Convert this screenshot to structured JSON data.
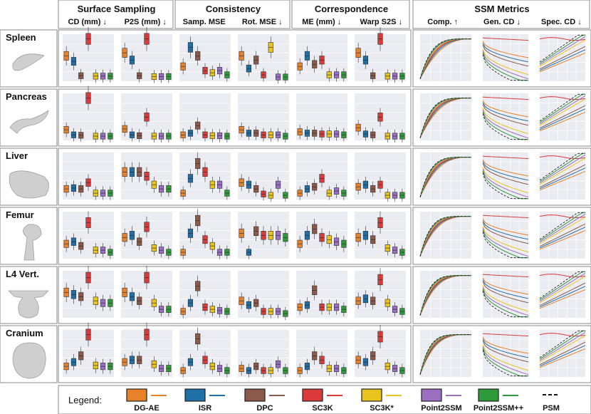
{
  "groups": [
    {
      "title": "Surface Sampling",
      "subs": [
        "CD (mm) ↓",
        "P2S (mm) ↓"
      ]
    },
    {
      "title": "Consistency",
      "subs": [
        "Samp. MSE",
        "Rot. MSE ↓"
      ]
    },
    {
      "title": "Correspondence",
      "subs": [
        "ME (mm) ↓",
        "Warp S2S ↓"
      ]
    },
    {
      "title": "SSM Metrics",
      "subs": [
        "Comp. ↑",
        "Gen. CD ↓",
        "Spec. CD ↓"
      ]
    }
  ],
  "organs": [
    "Spleen",
    "Pancreas",
    "Liver",
    "Femur",
    "L4 Vert.",
    "Cranium"
  ],
  "legend": {
    "title": "Legend:",
    "methods": [
      {
        "name": "DG-AE",
        "color": "#e8822a"
      },
      {
        "name": "ISR",
        "color": "#1f6fa8"
      },
      {
        "name": "DPC",
        "color": "#8b5a4a"
      },
      {
        "name": "SC3K",
        "color": "#d93a3a"
      },
      {
        "name": "SC3K*",
        "color": "#e8c41c"
      },
      {
        "name": "Point2SSM",
        "color": "#9b6fc2"
      },
      {
        "name": "Point2SSM++",
        "color": "#2e9a3a"
      },
      {
        "name": "PSM",
        "color": "#111111"
      }
    ]
  },
  "box_levels": [
    [
      [
        0.55,
        0.42,
        0.08,
        0.95,
        0.07,
        0.07,
        0.07
      ],
      [
        0.62,
        0.45,
        0.08,
        0.95,
        0.06,
        0.06,
        0.06
      ],
      [
        0.3,
        0.75,
        0.55,
        0.2,
        0.15,
        0.2,
        0.1
      ],
      [
        0.55,
        0.25,
        0.45,
        0.1,
        0.75,
        0.05,
        0.05
      ],
      [
        0.3,
        0.55,
        0.35,
        0.45,
        0.1,
        0.1,
        0.1
      ],
      [
        0.62,
        0.45,
        0.08,
        0.95,
        0.07,
        0.07,
        0.07
      ]
    ],
    [
      [
        0.2,
        0.08,
        0.07,
        0.95,
        0.05,
        0.05,
        0.05
      ],
      [
        0.22,
        0.08,
        0.06,
        0.5,
        0.05,
        0.05,
        0.05
      ],
      [
        0.08,
        0.12,
        0.3,
        0.08,
        0.06,
        0.06,
        0.05
      ],
      [
        0.2,
        0.12,
        0.12,
        0.08,
        0.08,
        0.08,
        0.05
      ],
      [
        0.15,
        0.12,
        0.12,
        0.1,
        0.1,
        0.1,
        0.08
      ],
      [
        0.25,
        0.1,
        0.08,
        0.5,
        0.05,
        0.05,
        0.05
      ]
    ],
    [
      [
        0.2,
        0.22,
        0.2,
        0.35,
        0.1,
        0.1,
        0.1
      ],
      [
        0.6,
        0.6,
        0.6,
        0.5,
        0.3,
        0.2,
        0.2
      ],
      [
        0.1,
        0.45,
        0.8,
        0.6,
        0.3,
        0.3,
        0.1
      ],
      [
        0.35,
        0.3,
        0.2,
        0.08,
        0.05,
        0.3,
        0.05
      ],
      [
        0.1,
        0.2,
        0.25,
        0.45,
        0.1,
        0.15,
        0.1
      ],
      [
        0.25,
        0.3,
        0.2,
        0.3,
        0.05,
        0.05,
        0.05
      ]
    ],
    [
      [
        0.3,
        0.35,
        0.25,
        0.8,
        0.15,
        0.15,
        0.1
      ],
      [
        0.45,
        0.5,
        0.35,
        0.7,
        0.2,
        0.15,
        0.1
      ],
      [
        0.1,
        0.55,
        0.85,
        0.4,
        0.25,
        0.1,
        0.1
      ],
      [
        0.55,
        0.1,
        0.6,
        0.5,
        0.5,
        0.5,
        0.45
      ],
      [
        0.3,
        0.5,
        0.65,
        0.45,
        0.4,
        0.35,
        0.3
      ],
      [
        0.45,
        0.5,
        0.4,
        0.8,
        0.2,
        0.15,
        0.1
      ]
    ],
    [
      [
        0.55,
        0.5,
        0.45,
        0.9,
        0.35,
        0.3,
        0.3
      ],
      [
        0.55,
        0.45,
        0.35,
        0.9,
        0.3,
        0.15,
        0.15
      ],
      [
        0.1,
        0.3,
        0.7,
        0.2,
        0.15,
        0.12,
        0.1
      ],
      [
        0.35,
        0.25,
        0.3,
        0.1,
        0.1,
        0.1,
        0.05
      ],
      [
        0.2,
        0.25,
        0.6,
        0.2,
        0.2,
        0.2,
        0.15
      ],
      [
        0.35,
        0.4,
        0.35,
        0.85,
        0.3,
        0.15,
        0.1
      ]
    ],
    [
      [
        0.2,
        0.3,
        0.45,
        0.95,
        0.22,
        0.2,
        0.2
      ],
      [
        0.3,
        0.35,
        0.35,
        0.95,
        0.25,
        0.15,
        0.15
      ],
      [
        0.1,
        0.3,
        0.85,
        0.35,
        0.2,
        0.15,
        0.1
      ],
      [
        0.15,
        0.1,
        0.2,
        0.1,
        0.1,
        0.25,
        0.1
      ],
      [
        0.1,
        0.2,
        0.45,
        0.35,
        0.15,
        0.15,
        0.1
      ],
      [
        0.35,
        0.3,
        0.45,
        0.9,
        0.2,
        0.15,
        0.1
      ]
    ]
  ]
}
